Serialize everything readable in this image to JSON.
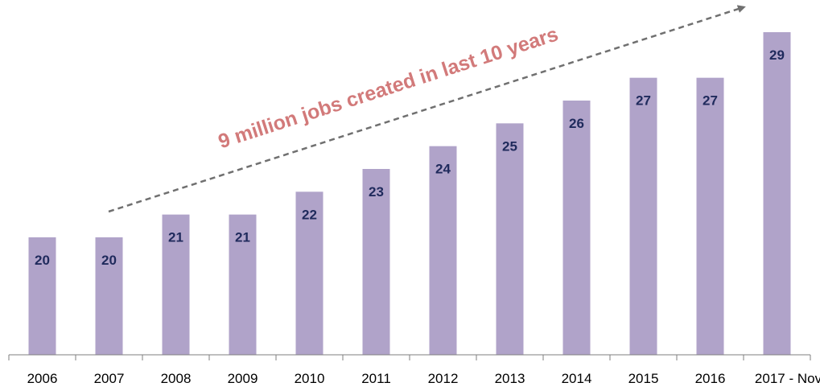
{
  "chart_data": {
    "type": "bar",
    "title": "",
    "xlabel": "",
    "ylabel": "",
    "categories": [
      "2006",
      "2007",
      "2008",
      "2009",
      "2010",
      "2011",
      "2012",
      "2013",
      "2014",
      "2015",
      "2016",
      "2017 - Nov"
    ],
    "values": [
      20,
      20,
      21,
      21,
      22,
      23,
      24,
      25,
      26,
      27,
      27,
      29
    ],
    "value_labels": [
      "20",
      "20",
      "21",
      "21",
      "22",
      "23",
      "24",
      "25",
      "26",
      "27",
      "27",
      "29"
    ],
    "annotation": "9 million jobs created in last 10 years",
    "grid": false,
    "legend": "none",
    "colors": {
      "bar": "#b0a3c9",
      "label": "#1f2a5c",
      "annotation": "#d27a7a",
      "trend": "#707070"
    }
  }
}
